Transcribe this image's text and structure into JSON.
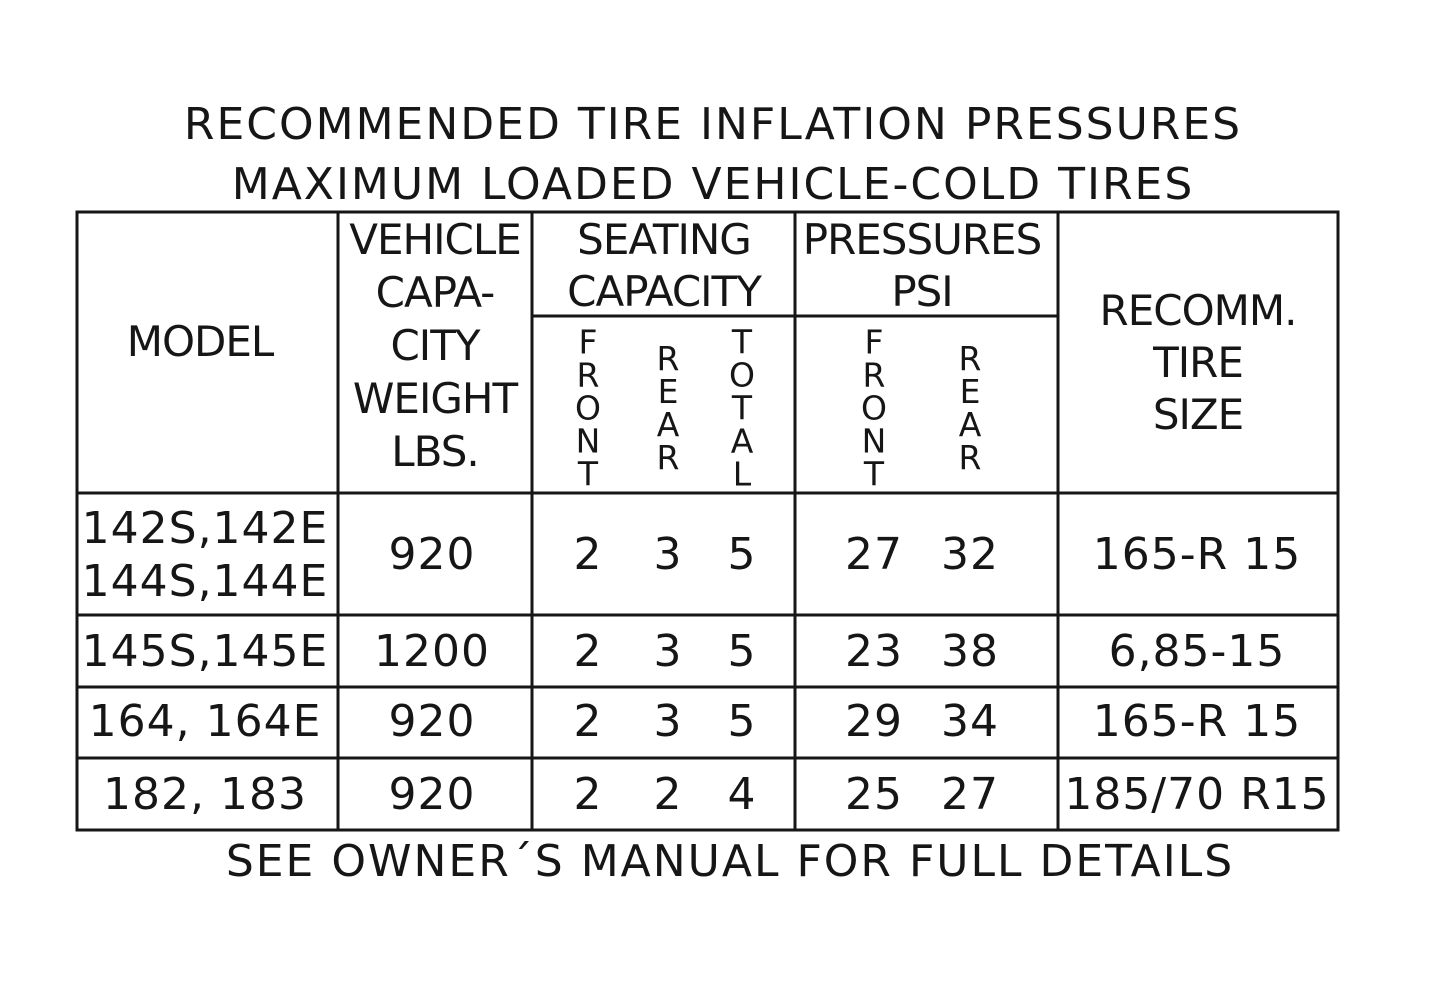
{
  "title": {
    "lines": [
      "RECOMMENDED TIRE INFLATION PRESSURES",
      "MAXIMUM LOADED VEHICLE-COLD TIRES"
    ]
  },
  "table": {
    "header": {
      "model": "MODEL",
      "weight": [
        "VEHICLE",
        "CAPA-",
        "CITY",
        "WEIGHT",
        "LBS."
      ],
      "seating": {
        "label": [
          "SEATING",
          "CAPACITY"
        ],
        "columns": [
          "FRONT",
          "REAR",
          "TOTAL"
        ]
      },
      "pressures": {
        "label": [
          "PRESSURES",
          "PSI"
        ],
        "columns": [
          "FRONT",
          "REAR"
        ]
      },
      "tire_size": [
        "RECOMM.",
        "TIRE",
        "SIZE"
      ]
    },
    "rows": [
      {
        "model": [
          "142S,142E",
          "144S,144E"
        ],
        "weight": 920,
        "seating": [
          2,
          3,
          5
        ],
        "pressures": [
          27,
          32
        ],
        "tire_size": "165-R 15"
      },
      {
        "model": [
          "145S,145E"
        ],
        "weight": 1200,
        "seating": [
          2,
          3,
          5
        ],
        "pressures": [
          23,
          38
        ],
        "tire_size": "6,85-15"
      },
      {
        "model": [
          "164,  164E"
        ],
        "weight": 920,
        "seating": [
          2,
          3,
          5
        ],
        "pressures": [
          29,
          34
        ],
        "tire_size": "165-R 15"
      },
      {
        "model": [
          "182,  183"
        ],
        "weight": 920,
        "seating": [
          2,
          2,
          4
        ],
        "pressures": [
          25,
          27
        ],
        "tire_size": "185/70 R15"
      }
    ]
  },
  "footer": "SEE OWNER´S MANUAL FOR FULL DETAILS"
}
